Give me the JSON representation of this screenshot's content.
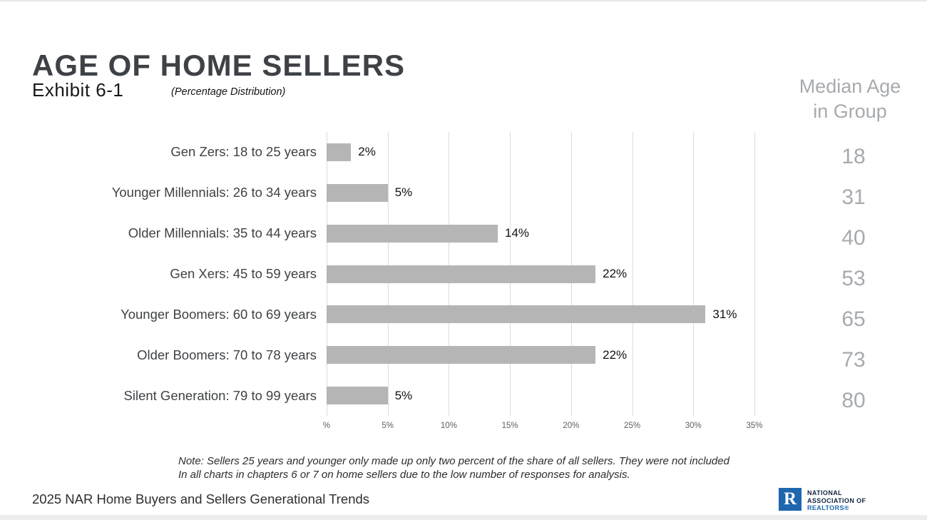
{
  "header": {
    "title": "AGE OF HOME SELLERS",
    "exhibit": "Exhibit 6-1",
    "subtitle": "(Percentage Distribution)"
  },
  "median_header": "Median Age\nin Group",
  "chart_data": {
    "type": "bar",
    "orientation": "horizontal",
    "title": "AGE OF HOME SELLERS",
    "subtitle": "(Percentage Distribution)",
    "categories": [
      "Gen Zers: 18 to 25 years",
      "Younger Millennials: 26 to 34 years",
      "Older Millennials: 35 to 44 years",
      "Gen Xers: 45 to 59 years",
      "Younger Boomers: 60 to 69 years",
      "Older Boomers: 70 to 78 years",
      "Silent Generation: 79 to 99 years"
    ],
    "values": [
      2,
      5,
      14,
      22,
      31,
      22,
      5
    ],
    "value_labels": [
      "2%",
      "5%",
      "14%",
      "22%",
      "31%",
      "22%",
      "5%"
    ],
    "median_ages": [
      18,
      31,
      40,
      53,
      65,
      73,
      80
    ],
    "median_column_header": "Median Age in Group",
    "x_ticks": [
      "%",
      "5%",
      "10%",
      "15%",
      "20%",
      "25%",
      "30%",
      "35%"
    ],
    "x_tick_values": [
      0,
      5,
      10,
      15,
      20,
      25,
      30,
      35
    ],
    "xlim": [
      0,
      35
    ],
    "xlabel": "",
    "ylabel": "",
    "grid": true,
    "legend": false,
    "bar_color": "#b5b5b5",
    "grid_color": "#dbdbdb"
  },
  "note": "Note: Sellers 25 years and younger only made up only two percent of the share of all sellers. They were not included\nIn all charts in chapters 6 or 7 on home sellers due to the low number of responses for analysis.",
  "footer": {
    "source": "2025 NAR Home Buyers and Sellers Generational Trends",
    "logo": {
      "letter": "R",
      "line1": "NATIONAL",
      "line2": "ASSOCIATION OF",
      "line3": "REALTORS®",
      "blue": "#1e66ae",
      "navy": "#15233f"
    }
  },
  "colors": {
    "title_text": "#3e4247",
    "muted_gray_text": "#a7aaae",
    "bar_fill": "#b5b5b5",
    "gridline": "#dbdbdb"
  }
}
